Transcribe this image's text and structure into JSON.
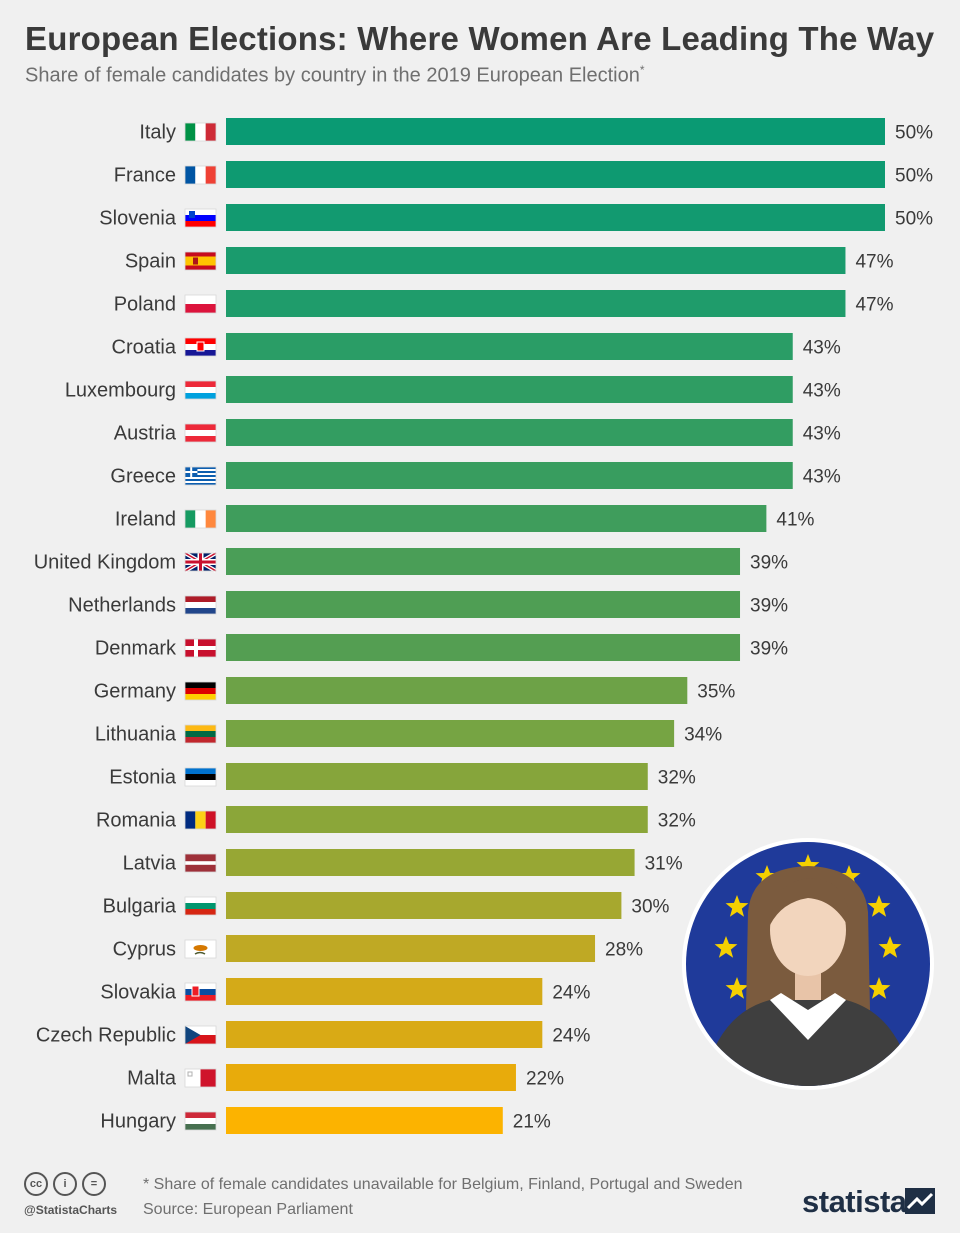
{
  "header": {
    "title": "European Elections: Where Women Are Leading The Way",
    "subtitle": "Share of female candidates by country in the 2019 European Election",
    "subtitle_marker": "*"
  },
  "chart_data": {
    "type": "bar",
    "orientation": "horizontal",
    "categories": [
      "Italy",
      "France",
      "Slovenia",
      "Spain",
      "Poland",
      "Croatia",
      "Luxembourg",
      "Austria",
      "Greece",
      "Ireland",
      "United Kingdom",
      "Netherlands",
      "Denmark",
      "Germany",
      "Lithuania",
      "Estonia",
      "Romania",
      "Latvia",
      "Bulgaria",
      "Cyprus",
      "Slovakia",
      "Czech Republic",
      "Malta",
      "Hungary"
    ],
    "values": [
      50,
      50,
      50,
      47,
      47,
      43,
      43,
      43,
      43,
      41,
      39,
      39,
      39,
      35,
      34,
      32,
      32,
      31,
      30,
      28,
      24,
      24,
      22,
      21
    ],
    "labels": [
      "50%",
      "50%",
      "50%",
      "47%",
      "47%",
      "43%",
      "43%",
      "43%",
      "43%",
      "41%",
      "39%",
      "39%",
      "39%",
      "35%",
      "34%",
      "32%",
      "32%",
      "31%",
      "30%",
      "28%",
      "24%",
      "24%",
      "22%",
      "21%"
    ],
    "bar_colors": [
      "#0a9a73",
      "#0e9a71",
      "#129a70",
      "#1a9b6d",
      "#1f9c6b",
      "#2a9d66",
      "#2f9d63",
      "#339d61",
      "#389d5f",
      "#3f9d5c",
      "#4a9e57",
      "#4f9e54",
      "#549e52",
      "#6da247",
      "#76a443",
      "#86a53b",
      "#8ba639",
      "#97a734",
      "#a7a82e",
      "#bfa924",
      "#d4aa18",
      "#d9aa15",
      "#e8ab0b",
      "#fcb300"
    ],
    "flags": [
      "italy-flag",
      "france-flag",
      "slovenia-flag",
      "spain-flag",
      "poland-flag",
      "croatia-flag",
      "luxembourg-flag",
      "austria-flag",
      "greece-flag",
      "ireland-flag",
      "uk-flag",
      "netherlands-flag",
      "denmark-flag",
      "germany-flag",
      "lithuania-flag",
      "estonia-flag",
      "romania-flag",
      "latvia-flag",
      "bulgaria-flag",
      "cyprus-flag",
      "slovakia-flag",
      "czech-flag",
      "malta-flag",
      "hungary-flag"
    ],
    "xlim": [
      0,
      50
    ],
    "grid": false,
    "xlabel": "",
    "ylabel": ""
  },
  "illustration": {
    "icon": "eu-woman-candidate-icon",
    "colors": {
      "eu_blue": "#1f3a9a",
      "star": "#f5d000"
    }
  },
  "footer": {
    "note": "* Share of female candidates unavailable for Belgium, Finland, Portugal and Sweden",
    "source": "Source: European Parliament",
    "handle": "@StatistaCharts",
    "cc_icons": [
      "cc",
      "i",
      "="
    ],
    "brand": "statista"
  }
}
